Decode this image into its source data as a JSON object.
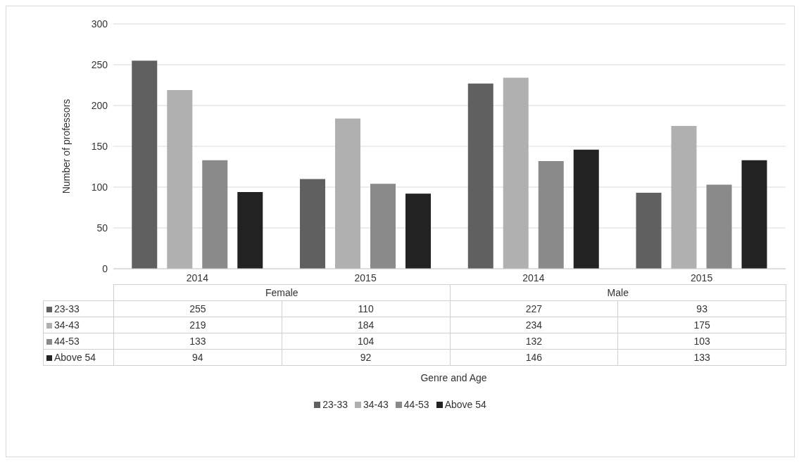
{
  "chart_data": {
    "type": "bar",
    "ylabel": "Number of professors",
    "categories": [
      "2014",
      "2015",
      "2014",
      "2015"
    ],
    "annotations": [
      "Female",
      "Male",
      "Genre and Age"
    ],
    "series": [
      {
        "name": "23-33",
        "color": "#606060",
        "values": [
          255,
          110,
          227,
          93
        ]
      },
      {
        "name": "34-43",
        "color": "#b0b0b0",
        "values": [
          219,
          184,
          234,
          175
        ]
      },
      {
        "name": "44-53",
        "color": "#8a8a8a",
        "values": [
          133,
          104,
          132,
          103
        ]
      },
      {
        "name": "Above 54",
        "color": "#222222",
        "values": [
          94,
          92,
          146,
          133
        ]
      }
    ],
    "ylim": [
      0,
      300
    ],
    "yticks": [
      0,
      50,
      100,
      150,
      200,
      250,
      300
    ],
    "grid": "y",
    "legend": "bottom",
    "data_labels": true
  }
}
